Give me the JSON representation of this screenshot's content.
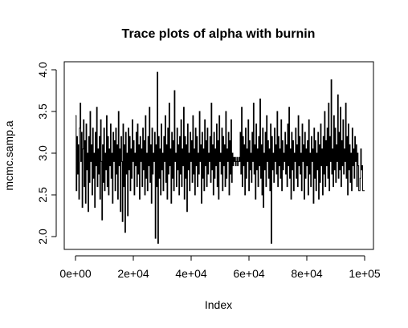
{
  "chart_data": {
    "type": "line",
    "title": "Trace plots of alpha with burnin",
    "xlabel": "Index",
    "ylabel": "mcmc.samp.a",
    "xlim": [
      0,
      100000
    ],
    "ylim": [
      1.9,
      4.0
    ],
    "x_ticks": [
      {
        "value": 0,
        "label": "0e+00"
      },
      {
        "value": 20000,
        "label": "2e+04"
      },
      {
        "value": 40000,
        "label": "4e+04"
      },
      {
        "value": 60000,
        "label": "6e+04"
      },
      {
        "value": 80000,
        "label": "8e+04"
      },
      {
        "value": 100000,
        "label": "1e+05"
      }
    ],
    "y_ticks": [
      {
        "value": 2.0,
        "label": "2.0"
      },
      {
        "value": 2.5,
        "label": "2.5"
      },
      {
        "value": 3.0,
        "label": "3.0"
      },
      {
        "value": 3.5,
        "label": "3.5"
      },
      {
        "value": 4.0,
        "label": "4.0"
      }
    ],
    "grid": false,
    "color": "#000000",
    "step": 500,
    "values": [
      3.45,
      2.55,
      3.2,
      2.75,
      3.1,
      2.45,
      3.3,
      3.6,
      2.9,
      3.25,
      2.35,
      3.05,
      3.4,
      2.6,
      3.15,
      2.4,
      3.35,
      2.8,
      3.0,
      2.3,
      3.2,
      2.65,
      3.5,
      2.9,
      3.1,
      2.5,
      3.3,
      2.7,
      3.0,
      2.35,
      3.25,
      2.85,
      3.55,
      2.6,
      3.05,
      2.75,
      3.2,
      2.45,
      3.4,
      2.9,
      2.2,
      3.1,
      2.65,
      3.3,
      2.55,
      3.0,
      2.8,
      3.45,
      2.6,
      3.2,
      2.5,
      3.05,
      2.85,
      3.35,
      2.7,
      3.0,
      2.4,
      3.25,
      2.9,
      3.15,
      2.55,
      3.3,
      2.75,
      3.1,
      2.45,
      3.5,
      2.85,
      3.05,
      2.3,
      3.2,
      2.9,
      2.18,
      3.35,
      2.6,
      3.1,
      2.05,
      3.25,
      2.75,
      3.0,
      2.25,
      3.3,
      2.8,
      3.2,
      2.55,
      3.05,
      2.7,
      3.4,
      2.9,
      3.15,
      2.5,
      3.0,
      2.85,
      3.25,
      2.6,
      3.35,
      2.75,
      3.1,
      2.45,
      3.2,
      2.9,
      3.05,
      2.6,
      3.3,
      2.8,
      3.15,
      2.5,
      3.45,
      2.7,
      3.0,
      2.55,
      3.2,
      2.85,
      3.55,
      2.65,
      3.1,
      2.4,
      3.3,
      2.75,
      3.0,
      2.9,
      3.25,
      1.98,
      3.1,
      2.6,
      3.97,
      1.92,
      3.2,
      2.7,
      3.05,
      2.5,
      3.35,
      2.8,
      3.0,
      2.55,
      3.2,
      2.9,
      3.45,
      2.65,
      3.1,
      2.45,
      3.3,
      2.75,
      3.6,
      2.85,
      3.05,
      2.4,
      3.25,
      2.7,
      3.15,
      2.55,
      3.75,
      2.9,
      3.0,
      2.6,
      3.3,
      2.8,
      3.1,
      2.5,
      3.2,
      2.75,
      3.4,
      2.6,
      3.05,
      2.85,
      3.55,
      2.45,
      3.2,
      2.7,
      3.1,
      2.3,
      3.35,
      2.8,
      3.0,
      2.55,
      3.25,
      2.9,
      3.15,
      2.65,
      3.45,
      2.75,
      3.05,
      2.5,
      3.3,
      2.85,
      3.2,
      2.6,
      3.0,
      2.75,
      3.5,
      2.9,
      3.1,
      2.4,
      3.25,
      2.7,
      3.05,
      2.55,
      3.4,
      2.85,
      3.15,
      2.6,
      3.3,
      2.75,
      3.0,
      2.9,
      3.2,
      2.65,
      3.6,
      2.8,
      3.1,
      2.5,
      3.25,
      2.7,
      3.05,
      2.85,
      3.35,
      2.6,
      3.15,
      2.45,
      3.45,
      2.9,
      3.0,
      2.75,
      3.3,
      2.55,
      3.2,
      2.85,
      3.1,
      2.6,
      3.5,
      2.7,
      3.05,
      2.9,
      3.25,
      2.5,
      3.15,
      2.75,
      3.4,
      2.65,
      3.0,
      2.85,
      2.95,
      2.9,
      2.95,
      2.85,
      2.9,
      2.95,
      2.85,
      2.9,
      2.95,
      2.9,
      3.25,
      2.75,
      3.55,
      2.6,
      3.2,
      2.85,
      3.1,
      2.5,
      3.3,
      2.7,
      3.05,
      2.9,
      3.4,
      2.55,
      3.15,
      2.8,
      3.0,
      2.65,
      3.25,
      2.9,
      3.6,
      2.75,
      3.1,
      2.45,
      3.35,
      2.8,
      3.05,
      2.6,
      3.2,
      2.85,
      3.65,
      2.7,
      3.1,
      2.5,
      3.3,
      2.35,
      3.0,
      2.8,
      3.25,
      2.6,
      3.45,
      2.9,
      3.15,
      2.7,
      3.05,
      2.55,
      3.35,
      1.92,
      3.2,
      2.8,
      3.0,
      2.65,
      3.3,
      2.9,
      3.1,
      2.75,
      3.5,
      2.6,
      3.2,
      2.85,
      3.05,
      2.7,
      3.4,
      2.55,
      3.15,
      2.8,
      3.0,
      2.9,
      3.25,
      2.75,
      3.1,
      2.6,
      3.35,
      2.85,
      3.55,
      2.7,
      3.05,
      2.45,
      3.25,
      2.8,
      3.15,
      2.55,
      3.0,
      2.9,
      3.3,
      2.7,
      3.1,
      2.6,
      3.45,
      2.85,
      3.2,
      2.75,
      3.0,
      2.55,
      3.35,
      2.9,
      3.1,
      2.45,
      3.25,
      2.7,
      3.05,
      2.85,
      3.15,
      2.5,
      3.4,
      2.75,
      3.0,
      2.6,
      3.2,
      2.9,
      3.05,
      2.4,
      3.3,
      2.7,
      3.15,
      2.55,
      3.0,
      2.8,
      3.25,
      2.45,
      3.1,
      2.65,
      3.35,
      2.85,
      3.05,
      2.5,
      3.2,
      2.75,
      3.5,
      2.6,
      3.15,
      2.85,
      3.3,
      2.7,
      3.6,
      2.55,
      3.2,
      2.9,
      3.88,
      2.75,
      3.05,
      2.6,
      3.45,
      2.8,
      3.3,
      2.65,
      3.1,
      2.9,
      3.7,
      2.7,
      3.25,
      2.8,
      3.55,
      2.6,
      3.15,
      2.85,
      3.4,
      2.75,
      3.05,
      2.9,
      3.6,
      2.7,
      3.2,
      2.5,
      3.35,
      2.8,
      3.1,
      2.65,
      3.0,
      2.55,
      3.3,
      2.85,
      3.05,
      2.7,
      3.2,
      2.9,
      3.1,
      2.6,
      3.0,
      2.85,
      2.55,
      2.55,
      2.7,
      3.05,
      2.8,
      2.85,
      2.55,
      2.55,
      2.55,
      2.55
    ]
  }
}
